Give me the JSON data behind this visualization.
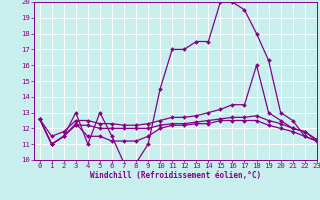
{
  "xlabel": "Windchill (Refroidissement éolien,°C)",
  "xlim": [
    -0.5,
    23
  ],
  "ylim": [
    10,
    20
  ],
  "yticks": [
    10,
    11,
    12,
    13,
    14,
    15,
    16,
    17,
    18,
    19,
    20
  ],
  "xticks": [
    0,
    1,
    2,
    3,
    4,
    5,
    6,
    7,
    8,
    9,
    10,
    11,
    12,
    13,
    14,
    15,
    16,
    17,
    18,
    19,
    20,
    21,
    22,
    23
  ],
  "background_color": "#c8eeee",
  "grid_color": "#ffffff",
  "line_color": "#880088",
  "series": [
    [
      12.6,
      11.0,
      11.5,
      13.0,
      11.0,
      13.0,
      11.5,
      9.8,
      9.8,
      11.0,
      14.5,
      17.0,
      17.0,
      17.5,
      17.5,
      20.0,
      20.0,
      19.5,
      18.0,
      16.3,
      13.0,
      12.5,
      11.5,
      11.2
    ],
    [
      12.6,
      11.0,
      11.5,
      12.2,
      12.2,
      12.0,
      12.0,
      12.0,
      12.0,
      12.0,
      12.2,
      12.3,
      12.3,
      12.4,
      12.5,
      12.6,
      12.7,
      12.7,
      12.8,
      12.5,
      12.3,
      12.0,
      11.8,
      11.2
    ],
    [
      12.6,
      11.5,
      11.8,
      12.5,
      12.5,
      12.3,
      12.3,
      12.2,
      12.2,
      12.3,
      12.5,
      12.7,
      12.7,
      12.8,
      13.0,
      13.2,
      13.5,
      13.5,
      16.0,
      13.0,
      12.5,
      12.0,
      11.8,
      11.3
    ],
    [
      12.6,
      11.0,
      11.5,
      12.3,
      11.5,
      11.5,
      11.2,
      11.2,
      11.2,
      11.5,
      12.0,
      12.2,
      12.2,
      12.3,
      12.3,
      12.5,
      12.5,
      12.5,
      12.5,
      12.2,
      12.0,
      11.8,
      11.5,
      11.2
    ]
  ]
}
